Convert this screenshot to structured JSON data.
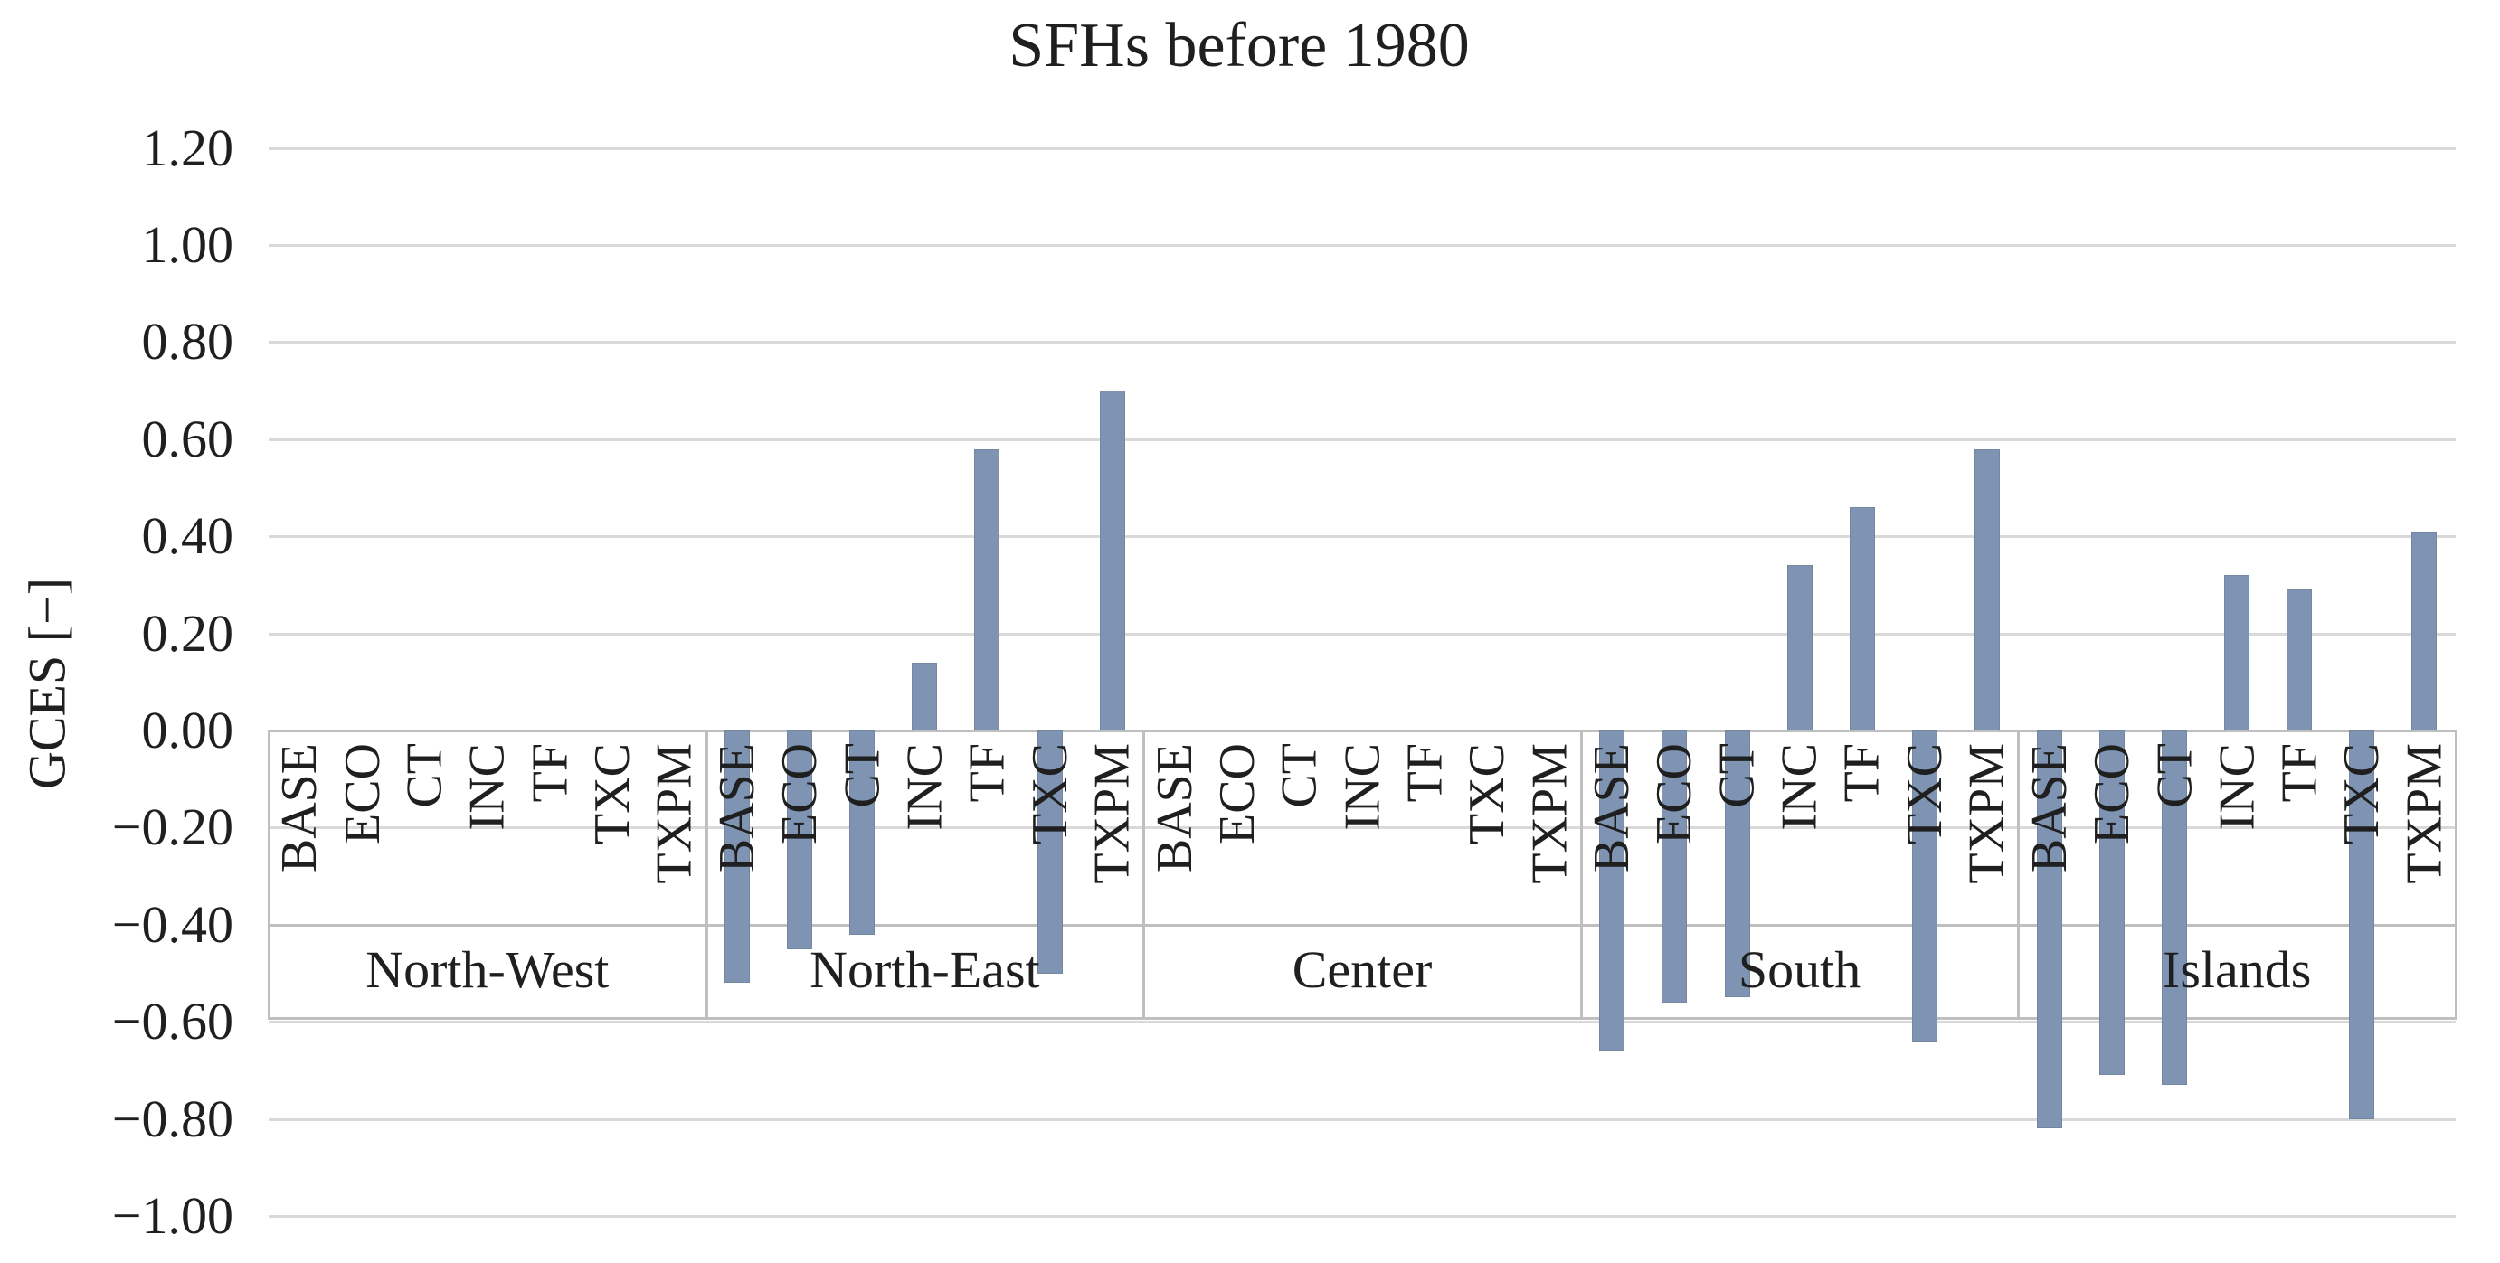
{
  "title": "SFHs before 1980",
  "y_axis": {
    "label": "GCES [−]",
    "tick_labels": [
      "1.20",
      "1.00",
      "0.80",
      "0.60",
      "0.40",
      "0.20",
      "0.00",
      "−0.20",
      "−0.40",
      "−0.60",
      "−0.80",
      "−1.00"
    ],
    "tick_values": [
      1.2,
      1.0,
      0.8,
      0.6,
      0.4,
      0.2,
      0.0,
      -0.2,
      -0.4,
      -0.6,
      -0.8,
      -1.0
    ]
  },
  "chart_data": {
    "type": "bar",
    "title": "SFHs before 1980",
    "xlabel": "",
    "ylabel": "GCES [−]",
    "ylim": [
      -1.0,
      1.2
    ],
    "grid": true,
    "legend": false,
    "categories": [
      "BASE",
      "ECO",
      "CT",
      "INC",
      "TF",
      "TXC",
      "TXPM"
    ],
    "groups": [
      {
        "name": "North-West",
        "values": [
          0,
          0,
          0,
          0,
          0,
          0,
          0
        ]
      },
      {
        "name": "North-East",
        "values": [
          -0.52,
          -0.45,
          -0.42,
          0.14,
          0.58,
          -0.5,
          0.7
        ]
      },
      {
        "name": "Center",
        "values": [
          0,
          0,
          0,
          0,
          0,
          0,
          0
        ]
      },
      {
        "name": "South",
        "values": [
          -0.66,
          -0.56,
          -0.55,
          0.34,
          0.46,
          -0.64,
          0.58
        ]
      },
      {
        "name": "Islands",
        "values": [
          -0.82,
          -0.71,
          -0.73,
          0.32,
          0.29,
          -0.8,
          0.41
        ]
      }
    ]
  },
  "colors": {
    "bar": "#7F94B3",
    "bar_edge": "#73889F",
    "gridline": "#D9D9D9",
    "band_border": "#BFBFBF",
    "text": "#1F1F1F",
    "background": "#FFFFFF"
  }
}
